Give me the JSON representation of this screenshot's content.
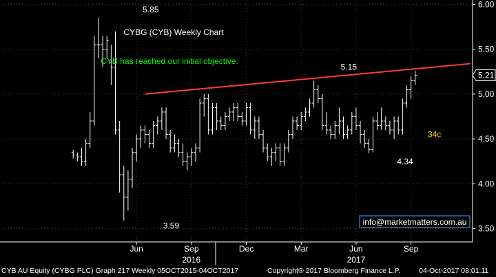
{
  "chart_data": {
    "type": "ohlc",
    "title": "CYBG (CYB) Weekly Chart",
    "subtitle": "CYB has reached our initial objective.",
    "ylim": [
      3.35,
      6.05
    ],
    "yticks": [
      "6.00",
      "5.50",
      "5.00",
      "4.50",
      "4.00",
      "3.50"
    ],
    "xticks": [
      {
        "label": "Jun",
        "week": 32
      },
      {
        "label": "Sep",
        "week": 45
      },
      {
        "label": "Dec",
        "week": 58
      },
      {
        "label": "Mar",
        "week": 71
      },
      {
        "label": "Jun",
        "week": 84
      },
      {
        "label": "Sep",
        "week": 97
      }
    ],
    "year_labels": [
      {
        "label": "2016",
        "week": 45
      },
      {
        "label": "2017",
        "week": 84
      }
    ],
    "series": [
      {
        "values": [
          [
            4.35,
            4.38,
            4.28,
            4.32
          ],
          [
            4.32,
            4.35,
            4.25,
            4.3
          ],
          [
            4.3,
            4.4,
            4.2,
            4.25
          ],
          [
            4.25,
            4.5,
            4.2,
            4.45
          ],
          [
            4.45,
            4.8,
            4.4,
            4.7
          ],
          [
            4.7,
            5.65,
            4.65,
            5.55
          ],
          [
            5.55,
            5.85,
            5.4,
            5.55
          ],
          [
            5.55,
            5.65,
            5.3,
            5.5
          ],
          [
            5.5,
            5.65,
            5.4,
            5.6
          ],
          [
            5.35,
            5.55,
            5.1,
            5.3
          ],
          [
            5.3,
            5.7,
            4.55,
            4.6
          ],
          [
            4.6,
            4.7,
            3.9,
            4.1
          ],
          [
            4.1,
            4.2,
            3.59,
            3.85
          ],
          [
            3.85,
            4.15,
            3.7,
            4.05
          ],
          [
            4.05,
            4.4,
            3.95,
            4.35
          ],
          [
            4.35,
            4.55,
            4.25,
            4.5
          ],
          [
            4.5,
            4.65,
            4.4,
            4.6
          ],
          [
            4.6,
            4.65,
            4.45,
            4.55
          ],
          [
            4.55,
            4.6,
            4.4,
            4.45
          ],
          [
            4.45,
            4.7,
            4.4,
            4.65
          ],
          [
            4.65,
            4.75,
            4.55,
            4.7
          ],
          [
            4.7,
            4.85,
            4.6,
            4.8
          ],
          [
            4.8,
            4.85,
            4.5,
            4.55
          ],
          [
            4.55,
            4.6,
            4.35,
            4.4
          ],
          [
            4.4,
            4.55,
            4.35,
            4.45
          ],
          [
            4.45,
            4.5,
            4.3,
            4.35
          ],
          [
            4.35,
            4.45,
            4.2,
            4.25
          ],
          [
            4.25,
            4.35,
            4.15,
            4.3
          ],
          [
            4.3,
            4.4,
            4.2,
            4.35
          ],
          [
            4.35,
            4.45,
            4.25,
            4.4
          ],
          [
            4.4,
            4.95,
            4.35,
            4.9
          ],
          [
            4.9,
            5.0,
            4.75,
            4.95
          ],
          [
            4.95,
            5.0,
            4.55,
            4.6
          ],
          [
            4.6,
            4.9,
            4.55,
            4.85
          ],
          [
            4.85,
            4.9,
            4.6,
            4.7
          ],
          [
            4.7,
            4.75,
            4.6,
            4.65
          ],
          [
            4.65,
            4.8,
            4.6,
            4.75
          ],
          [
            4.75,
            4.85,
            4.7,
            4.8
          ],
          [
            4.8,
            4.9,
            4.7,
            4.85
          ],
          [
            4.85,
            4.9,
            4.7,
            4.75
          ],
          [
            4.75,
            4.8,
            4.65,
            4.7
          ],
          [
            4.7,
            4.9,
            4.65,
            4.85
          ],
          [
            4.85,
            4.9,
            4.55,
            4.6
          ],
          [
            4.6,
            4.75,
            4.5,
            4.7
          ],
          [
            4.7,
            4.75,
            4.5,
            4.55
          ],
          [
            4.55,
            4.6,
            4.35,
            4.4
          ],
          [
            4.4,
            4.45,
            4.25,
            4.3
          ],
          [
            4.3,
            4.4,
            4.2,
            4.35
          ],
          [
            4.35,
            4.45,
            4.25,
            4.4
          ],
          [
            4.4,
            4.45,
            4.2,
            4.25
          ],
          [
            4.25,
            4.45,
            4.2,
            4.4
          ],
          [
            4.4,
            4.6,
            4.35,
            4.55
          ],
          [
            4.55,
            4.75,
            4.5,
            4.7
          ],
          [
            4.7,
            4.75,
            4.6,
            4.65
          ],
          [
            4.65,
            4.8,
            4.6,
            4.75
          ],
          [
            4.75,
            4.85,
            4.7,
            4.8
          ],
          [
            4.8,
            4.95,
            4.75,
            4.9
          ],
          [
            4.9,
            5.15,
            4.85,
            5.05
          ],
          [
            5.05,
            5.1,
            4.9,
            4.95
          ],
          [
            4.95,
            5.0,
            4.6,
            4.65
          ],
          [
            4.65,
            4.8,
            4.55,
            4.6
          ],
          [
            4.6,
            4.65,
            4.5,
            4.55
          ],
          [
            4.55,
            4.7,
            4.5,
            4.65
          ],
          [
            4.65,
            4.85,
            4.55,
            4.7
          ],
          [
            4.7,
            4.75,
            4.5,
            4.55
          ],
          [
            4.55,
            4.65,
            4.5,
            4.6
          ],
          [
            4.6,
            4.8,
            4.55,
            4.75
          ],
          [
            4.75,
            4.85,
            4.6,
            4.65
          ],
          [
            4.65,
            4.7,
            4.45,
            4.55
          ],
          [
            4.55,
            4.6,
            4.4,
            4.45
          ],
          [
            4.45,
            4.5,
            4.34,
            4.38
          ],
          [
            4.38,
            4.75,
            4.35,
            4.7
          ],
          [
            4.7,
            4.8,
            4.6,
            4.65
          ],
          [
            4.65,
            4.85,
            4.6,
            4.7
          ],
          [
            4.7,
            4.75,
            4.6,
            4.65
          ],
          [
            4.65,
            4.7,
            4.55,
            4.6
          ],
          [
            4.6,
            4.75,
            4.5,
            4.7
          ],
          [
            4.7,
            4.75,
            4.55,
            4.6
          ],
          [
            4.6,
            4.95,
            4.55,
            4.9
          ],
          [
            4.9,
            5.1,
            4.85,
            5.05
          ],
          [
            5.05,
            5.2,
            4.95,
            5.15
          ],
          [
            5.15,
            5.26,
            5.1,
            5.21
          ]
        ]
      }
    ],
    "resistance_line": {
      "from": {
        "week": 34,
        "value": 5.0
      },
      "to": {
        "week": 117,
        "value": 5.34
      }
    },
    "annotations": [
      {
        "text": "5.85",
        "week": 32,
        "value": 5.85,
        "color": "#ffffff"
      },
      {
        "text": "3.59",
        "week": 37,
        "value": 3.59,
        "color": "#ffffff"
      },
      {
        "text": "5.15",
        "week": 82,
        "value": 5.15,
        "color": "#ffffff"
      },
      {
        "text": "4.34",
        "week": 95,
        "value": 4.34,
        "color": "#ffffff"
      },
      {
        "text": "34c",
        "week": 99,
        "value": 4.55,
        "color": "#ffe600"
      }
    ],
    "last_price": "5.21",
    "colors": {
      "background": "#000000",
      "bars": "#ffffff",
      "resistance_line": "#ff3b3b",
      "title": "#ffffff",
      "subtitle": "#00ff00",
      "accent_label": "#ffe600",
      "email": "#ffffff"
    }
  },
  "contact": {
    "email": "info@marketmatters.com.au"
  },
  "footer": {
    "left": "CYB AU Equity (CYBG PLC) Graph 217  Weekly 05OCT2015-04OCT2017",
    "center": "Copyright® 2017 Bloomberg Finance L.P.",
    "right": "04-Oct-2017 08:01:11"
  }
}
